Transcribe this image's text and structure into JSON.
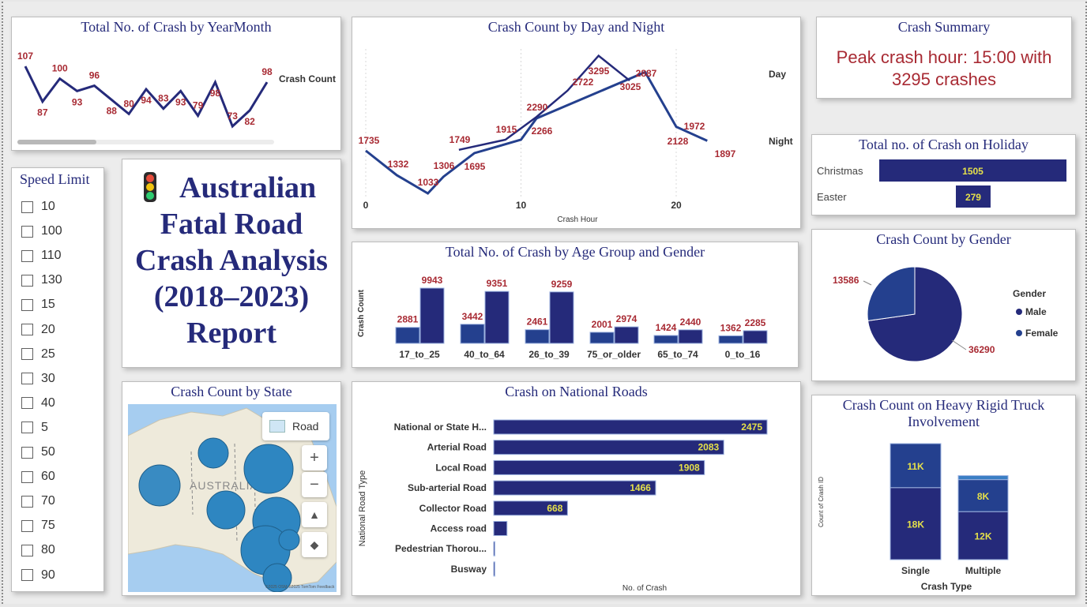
{
  "colors": {
    "navy": "#252a7a",
    "blue": "#24408e",
    "accent_red": "#a82a33",
    "yellow_label": "#e5e04a",
    "map_bubble": "#2e86c1",
    "light_blue": "#3a7ec4"
  },
  "year_month": {
    "title": "Total No. of Crash by YearMonth",
    "legend": "Crash Count",
    "values": [
      107,
      87,
      100,
      93,
      96,
      88,
      80,
      94,
      83,
      93,
      79,
      98,
      73,
      82,
      98
    ]
  },
  "day_night": {
    "title": "Crash Count by Day and Night",
    "xlabel": "Crash Hour",
    "x_ticks": [
      "0",
      "10",
      "20"
    ],
    "legend_day": "Day",
    "legend_night": "Night",
    "night_points": [
      [
        0,
        1735
      ],
      [
        2,
        1332
      ],
      [
        4,
        1033
      ],
      [
        5,
        1306
      ],
      [
        7,
        1695
      ],
      [
        10,
        1915
      ],
      [
        11,
        2266
      ],
      [
        18,
        3025
      ],
      [
        20,
        2128
      ],
      [
        22,
        1897
      ]
    ],
    "day_points": [
      [
        6,
        1749
      ],
      [
        9,
        1915
      ],
      [
        11,
        2290
      ],
      [
        13,
        2722
      ],
      [
        15,
        3295
      ],
      [
        17,
        2887
      ]
    ],
    "labels": [
      {
        "text": "1735"
      },
      {
        "text": "1332"
      },
      {
        "text": "1033"
      },
      {
        "text": "1306"
      },
      {
        "text": "1749"
      },
      {
        "text": "1695"
      },
      {
        "text": "1915"
      },
      {
        "text": "2290"
      },
      {
        "text": "2266"
      },
      {
        "text": "2722"
      },
      {
        "text": "3295"
      },
      {
        "text": "2887"
      },
      {
        "text": "3025"
      },
      {
        "text": "1972"
      },
      {
        "text": "2128"
      },
      {
        "text": "1897"
      }
    ]
  },
  "summary": {
    "title": "Crash Summary",
    "line1": "Peak crash hour: 15:00 with",
    "line2": "3295 crashes"
  },
  "holiday": {
    "title": "Total no. of Crash on Holiday",
    "items": [
      {
        "label": "Christmas",
        "value": 1505
      },
      {
        "label": "Easter",
        "value": 279
      }
    ]
  },
  "speed_limit": {
    "title": "Speed Limit",
    "options": [
      "10",
      "100",
      "110",
      "130",
      "15",
      "20",
      "25",
      "30",
      "40",
      "5",
      "50",
      "60",
      "70",
      "75",
      "80",
      "90"
    ]
  },
  "report_title": {
    "line1": "Australian",
    "line2": "Fatal Road",
    "line3": "Crash Analysis",
    "line4": "(2018–2023)",
    "line5": "Report"
  },
  "age_gender": {
    "title": "Total No. of Crash by Age Group and Gender",
    "ylabel": "Crash Count",
    "groups": [
      {
        "name": "17_to_25",
        "a": 2881,
        "b": 9943
      },
      {
        "name": "40_to_64",
        "a": 3442,
        "b": 9351
      },
      {
        "name": "26_to_39",
        "a": 2461,
        "b": 9259
      },
      {
        "name": "75_or_older",
        "a": 2001,
        "b": 2974
      },
      {
        "name": "65_to_74",
        "a": 1424,
        "b": 2440
      },
      {
        "name": "0_to_16",
        "a": 1362,
        "b": 2285
      }
    ]
  },
  "gender": {
    "title": "Crash Count by Gender",
    "legend_title": "Gender",
    "slices": [
      {
        "name": "Male",
        "value": 36290
      },
      {
        "name": "Female",
        "value": 13586
      }
    ]
  },
  "state_map": {
    "title": "Crash Count by State",
    "style_button": "Road",
    "country_label": "AUSTRALIA",
    "zoom_in": "+",
    "zoom_out": "−",
    "attribution": "©2025 OSM ©2025 TomTom Feedback"
  },
  "national_roads": {
    "title": "Crash on National Roads",
    "ylabel": "National Road Type",
    "xlabel": "No. of Crash",
    "items": [
      {
        "label": "National or State H...",
        "value": 2475,
        "show": "2475"
      },
      {
        "label": "Arterial Road",
        "value": 2083,
        "show": "2083"
      },
      {
        "label": "Local Road",
        "value": 1908,
        "show": "1908"
      },
      {
        "label": "Sub-arterial Road",
        "value": 1466,
        "show": "1466"
      },
      {
        "label": "Collector Road",
        "value": 668,
        "show": "668"
      },
      {
        "label": "Access road",
        "value": 120,
        "show": ""
      },
      {
        "label": "Pedestrian Thorou...",
        "value": 4,
        "show": ""
      },
      {
        "label": "Busway",
        "value": 2,
        "show": ""
      }
    ]
  },
  "truck": {
    "title_line1": "Crash Count on Heavy Rigid Truck",
    "title_line2": "Involvement",
    "ylabel": "Count of Crash ID",
    "xlabel": "Crash Type",
    "bars": [
      {
        "name": "Single",
        "bottom": 18000,
        "bottom_label": "18K",
        "top": 11000,
        "top_label": "11K"
      },
      {
        "name": "Multiple",
        "bottom": 12000,
        "bottom_label": "12K",
        "top": 8000,
        "top_label": "8K",
        "extra": 1000
      }
    ]
  },
  "chart_data": [
    {
      "type": "line",
      "title": "Total No. of Crash by YearMonth",
      "series": [
        {
          "name": "Crash Count",
          "values": [
            107,
            87,
            100,
            93,
            96,
            88,
            80,
            94,
            83,
            93,
            79,
            98,
            73,
            82,
            98
          ]
        }
      ]
    },
    {
      "type": "line",
      "title": "Crash Count by Day and Night",
      "xlabel": "Crash Hour",
      "series": [
        {
          "name": "Day",
          "x": [
            6,
            9,
            11,
            13,
            15,
            17
          ],
          "values": [
            1749,
            1915,
            2290,
            2722,
            3295,
            2887
          ]
        },
        {
          "name": "Night",
          "x": [
            0,
            2,
            4,
            5,
            7,
            10,
            11,
            18,
            20,
            22
          ],
          "values": [
            1735,
            1332,
            1033,
            1306,
            1695,
            1915,
            2266,
            3025,
            2128,
            1897
          ]
        }
      ]
    },
    {
      "type": "bar",
      "title": "Total no. of Crash on Holiday",
      "categories": [
        "Christmas",
        "Easter"
      ],
      "values": [
        1505,
        279
      ]
    },
    {
      "type": "bar",
      "title": "Total No. of Crash by Age Group and Gender",
      "ylabel": "Crash Count",
      "categories": [
        "17_to_25",
        "40_to_64",
        "26_to_39",
        "75_or_older",
        "65_to_74",
        "0_to_16"
      ],
      "series": [
        {
          "values": [
            2881,
            3442,
            2461,
            2001,
            1424,
            1362
          ]
        },
        {
          "values": [
            9943,
            9351,
            9259,
            2974,
            2440,
            2285
          ]
        }
      ]
    },
    {
      "type": "pie",
      "title": "Crash Count by Gender",
      "categories": [
        "Male",
        "Female"
      ],
      "values": [
        36290,
        13586
      ]
    },
    {
      "type": "bar",
      "title": "Crash on National Roads",
      "xlabel": "No. of Crash",
      "ylabel": "National Road Type",
      "categories": [
        "National or State H...",
        "Arterial Road",
        "Local Road",
        "Sub-arterial Road",
        "Collector Road",
        "Access road",
        "Pedestrian Thorou...",
        "Busway"
      ],
      "values": [
        2475,
        2083,
        1908,
        1466,
        668,
        120,
        4,
        2
      ]
    },
    {
      "type": "bar",
      "title": "Crash Count on Heavy Rigid Truck Involvement",
      "xlabel": "Crash Type",
      "ylabel": "Count of Crash ID",
      "categories": [
        "Single",
        "Multiple"
      ],
      "series": [
        {
          "values": [
            18000,
            12000
          ]
        },
        {
          "values": [
            11000,
            8000
          ]
        }
      ]
    }
  ]
}
